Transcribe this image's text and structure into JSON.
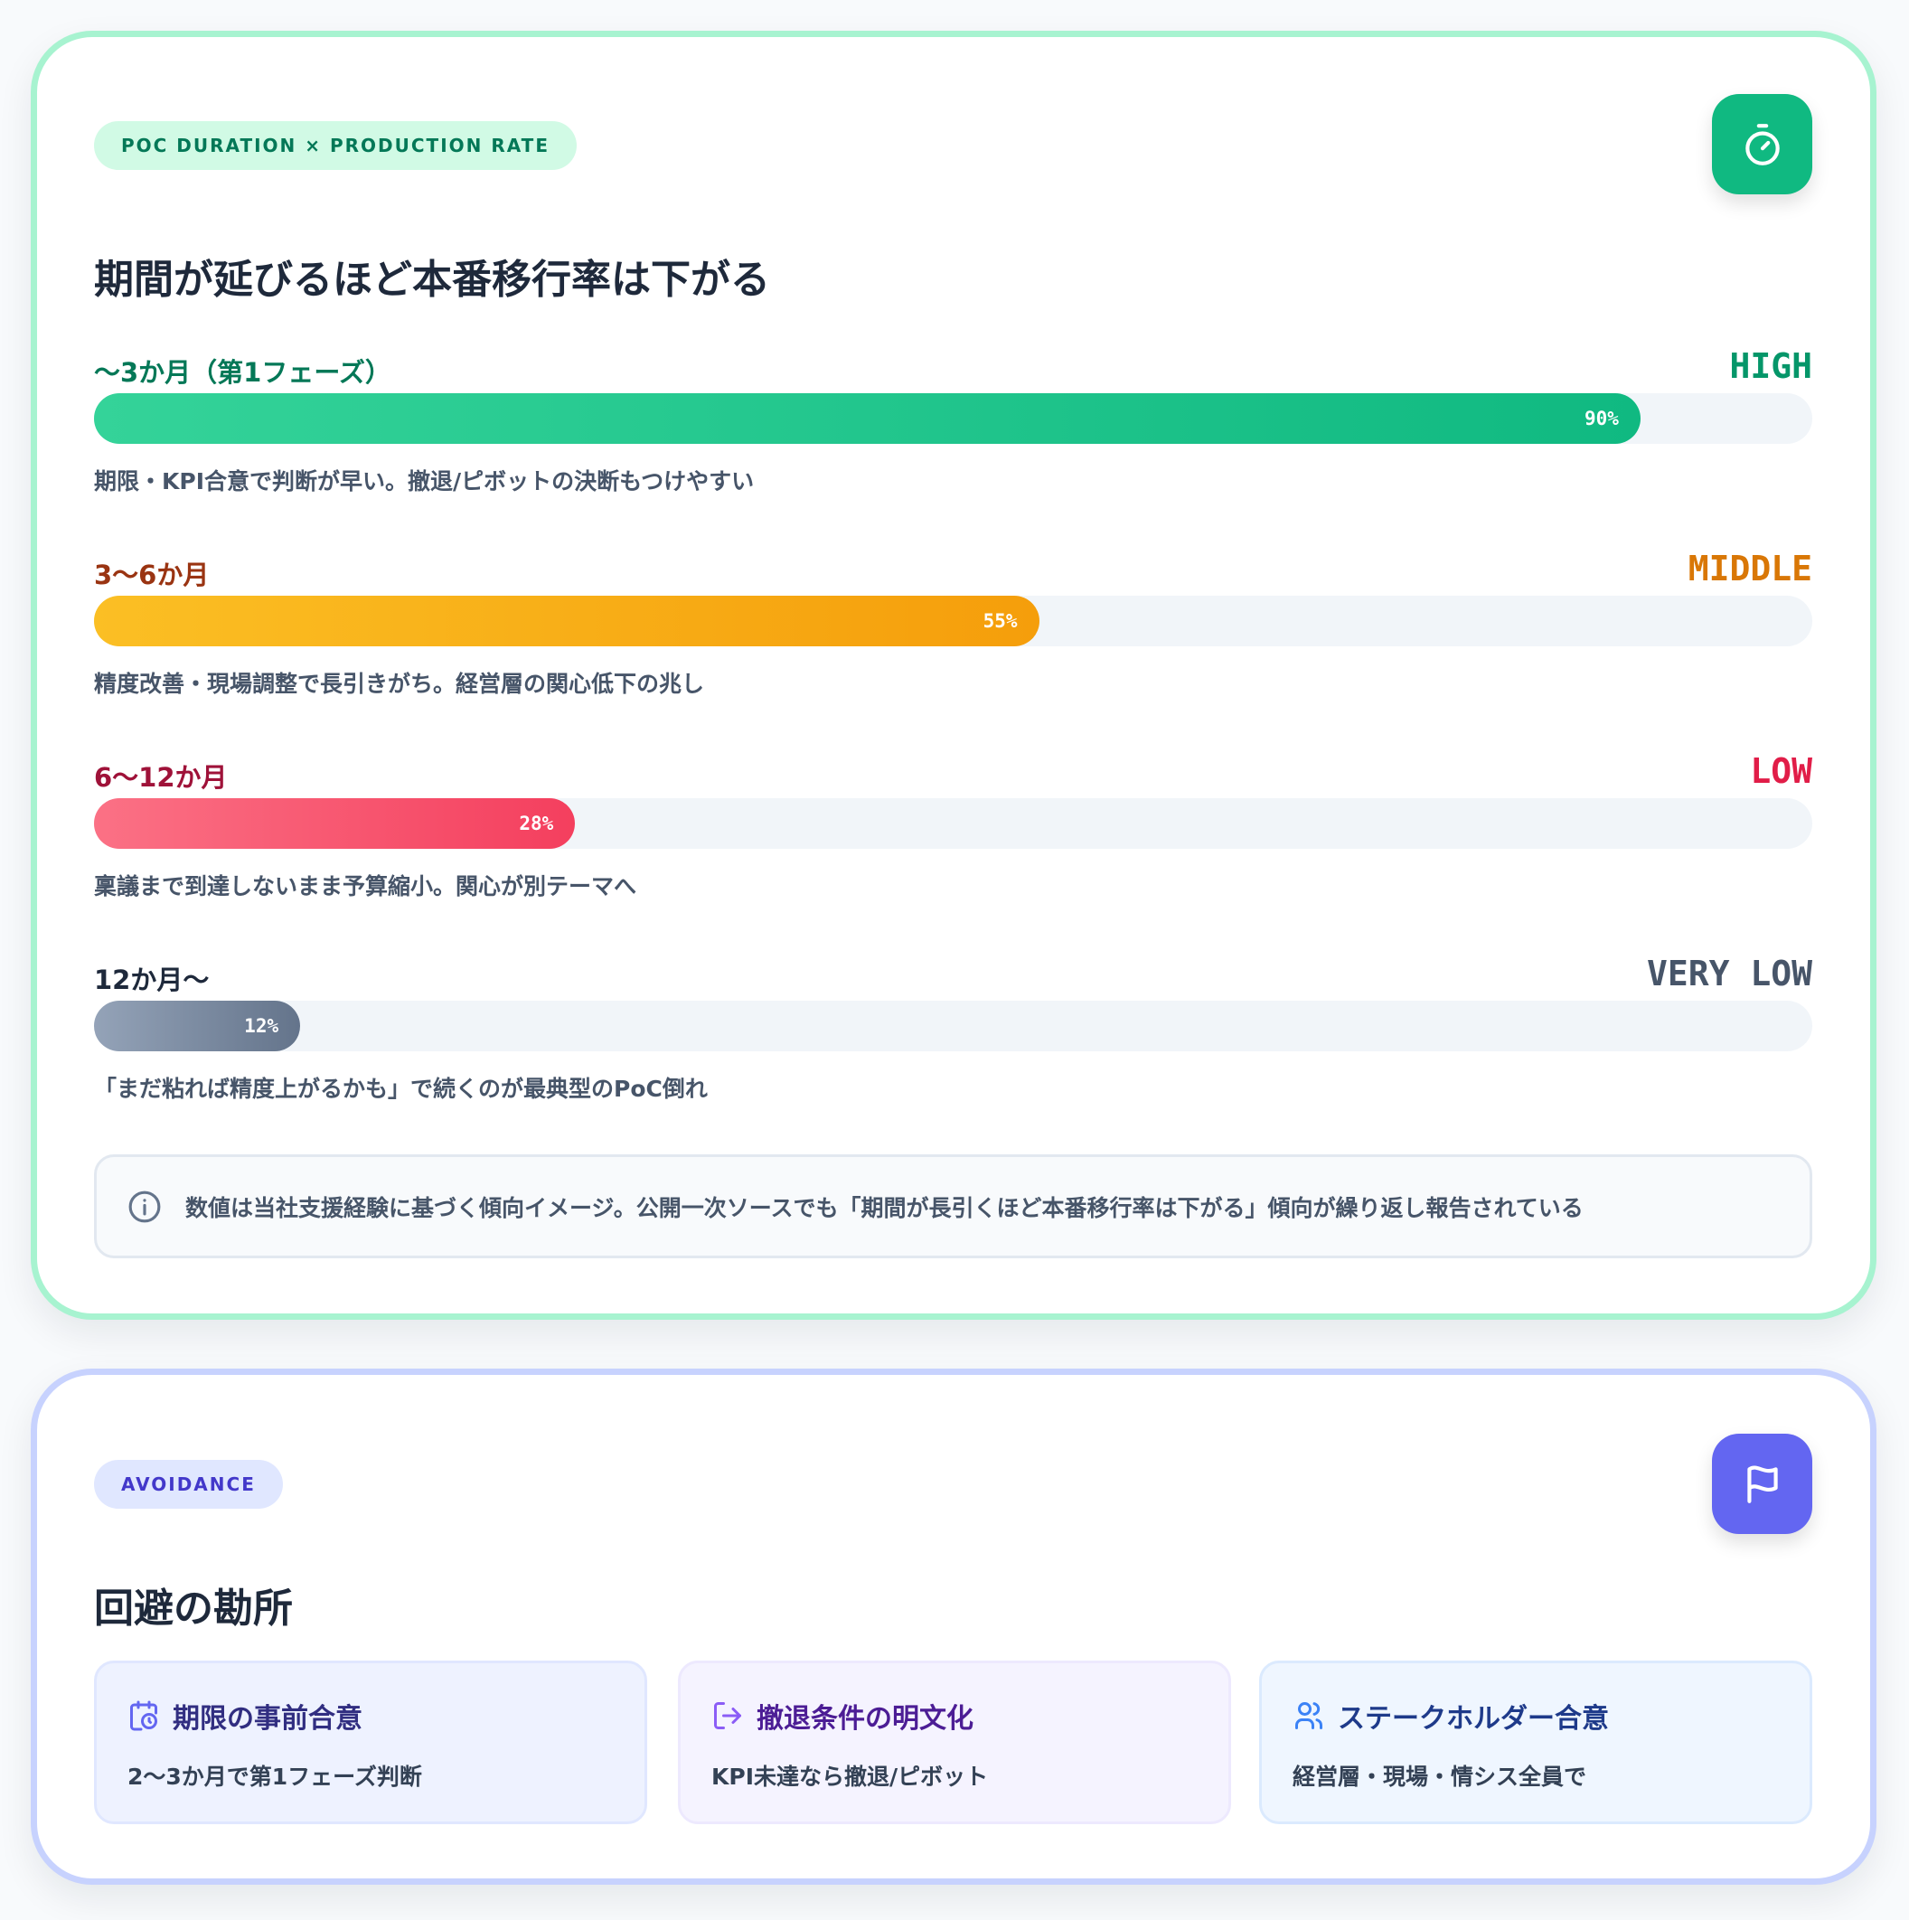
{
  "duration_card": {
    "badge": "POC DURATION × PRODUCTION RATE",
    "icon": "stopwatch-icon",
    "title": "期間が延びるほど本番移行率は下がる",
    "rows": [
      {
        "label": "〜3か月（第1フェーズ）",
        "level": "HIGH",
        "percent": 90,
        "percent_label": "90%",
        "desc": "期限・KPI合意で判断が早い。撤退/ピボットの決断もつけやすい",
        "label_color": "#047857",
        "level_color": "#059669",
        "bar_from": "#34d399",
        "bar_to": "#10b981"
      },
      {
        "label": "3〜6か月",
        "level": "MIDDLE",
        "percent": 55,
        "percent_label": "55%",
        "desc": "精度改善・現場調整で長引きがち。経営層の関心低下の兆し",
        "label_color": "#9a3412",
        "level_color": "#d97706",
        "bar_from": "#fbbf24",
        "bar_to": "#f59e0b"
      },
      {
        "label": "6〜12か月",
        "level": "LOW",
        "percent": 28,
        "percent_label": "28%",
        "desc": "稟議まで到達しないまま予算縮小。関心が別テーマへ",
        "label_color": "#9f1239",
        "level_color": "#e11d48",
        "bar_from": "#fb7185",
        "bar_to": "#f43f5e"
      },
      {
        "label": "12か月〜",
        "level": "VERY LOW",
        "percent": 12,
        "percent_label": "12%",
        "desc": "「まだ粘れば精度上がるかも」で続くのが最典型のPoC倒れ",
        "label_color": "#1e293b",
        "level_color": "#475569",
        "bar_from": "#94a3b8",
        "bar_to": "#64748b"
      }
    ],
    "note": "数値は当社支援経験に基づく傾向イメージ。公開一次ソースでも「期間が長引くほど本番移行率は下がる」傾向が繰り返し報告されている"
  },
  "avoidance_card": {
    "badge": "AVOIDANCE",
    "icon": "flag-icon",
    "title": "回避の勘所",
    "items": [
      {
        "icon": "calendar-clock-icon",
        "title": "期限の事前合意",
        "desc": "2〜3か月で第1フェーズ判断"
      },
      {
        "icon": "exit-icon",
        "title": "撤退条件の明文化",
        "desc": "KPI未達なら撤退/ピボット"
      },
      {
        "icon": "users-icon",
        "title": "ステークホルダー合意",
        "desc": "経営層・現場・情シス全員で"
      }
    ]
  }
}
